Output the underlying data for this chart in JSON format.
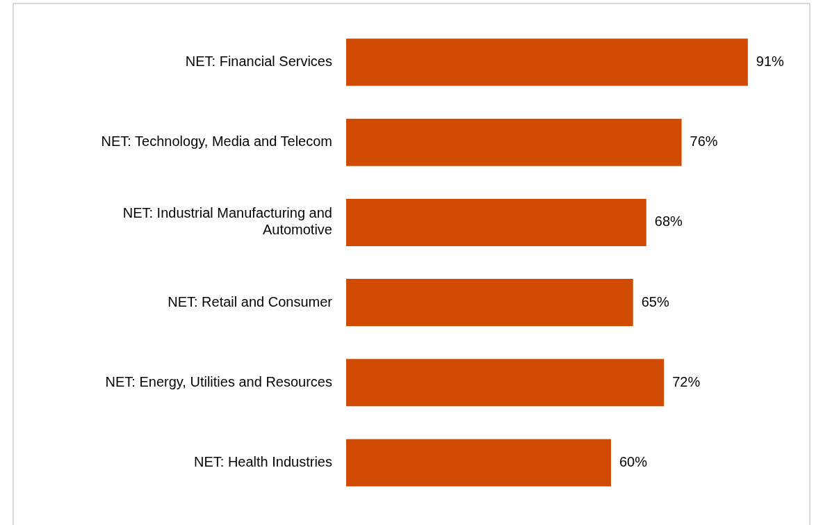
{
  "chart_data": {
    "type": "bar",
    "orientation": "horizontal",
    "categories": [
      "NET: Financial Services",
      "NET: Technology, Media and Telecom",
      "NET: Industrial Manufacturing and Automotive",
      "NET: Retail and Consumer",
      "NET: Energy, Utilities and Resources",
      "NET: Health Industries"
    ],
    "values": [
      91,
      76,
      68,
      65,
      72,
      60
    ],
    "color": "#d04a02",
    "value_labels": [
      "91%",
      "76%",
      "68%",
      "65%",
      "72%",
      "60%"
    ]
  }
}
